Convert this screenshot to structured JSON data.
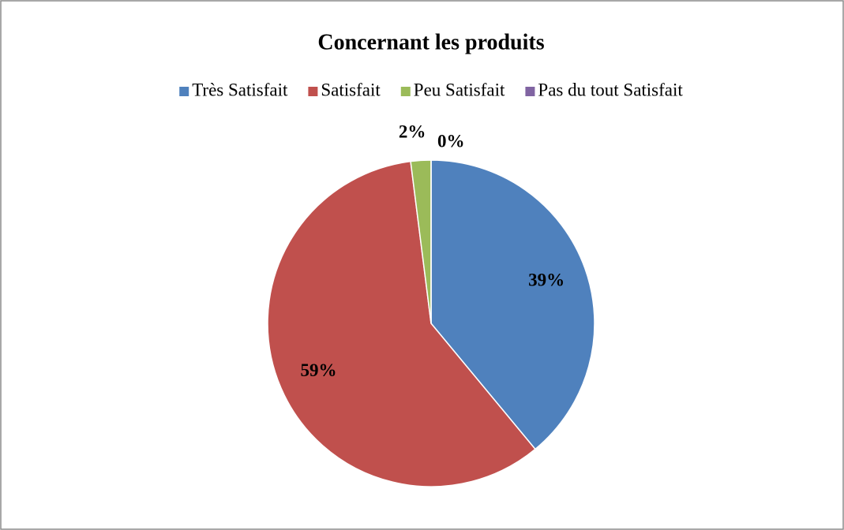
{
  "chart_data": {
    "type": "pie",
    "title": "Concernant les produits",
    "categories": [
      "Très Satisfait",
      "Satisfait",
      "Peu Satisfait",
      "Pas du tout Satisfait"
    ],
    "values": [
      39,
      59,
      2,
      0
    ],
    "value_labels": [
      "39%",
      "59%",
      "2%",
      "0%"
    ],
    "colors": [
      "#4f81bd",
      "#c0504d",
      "#9bbb59",
      "#8064a2"
    ],
    "legend": "top"
  }
}
